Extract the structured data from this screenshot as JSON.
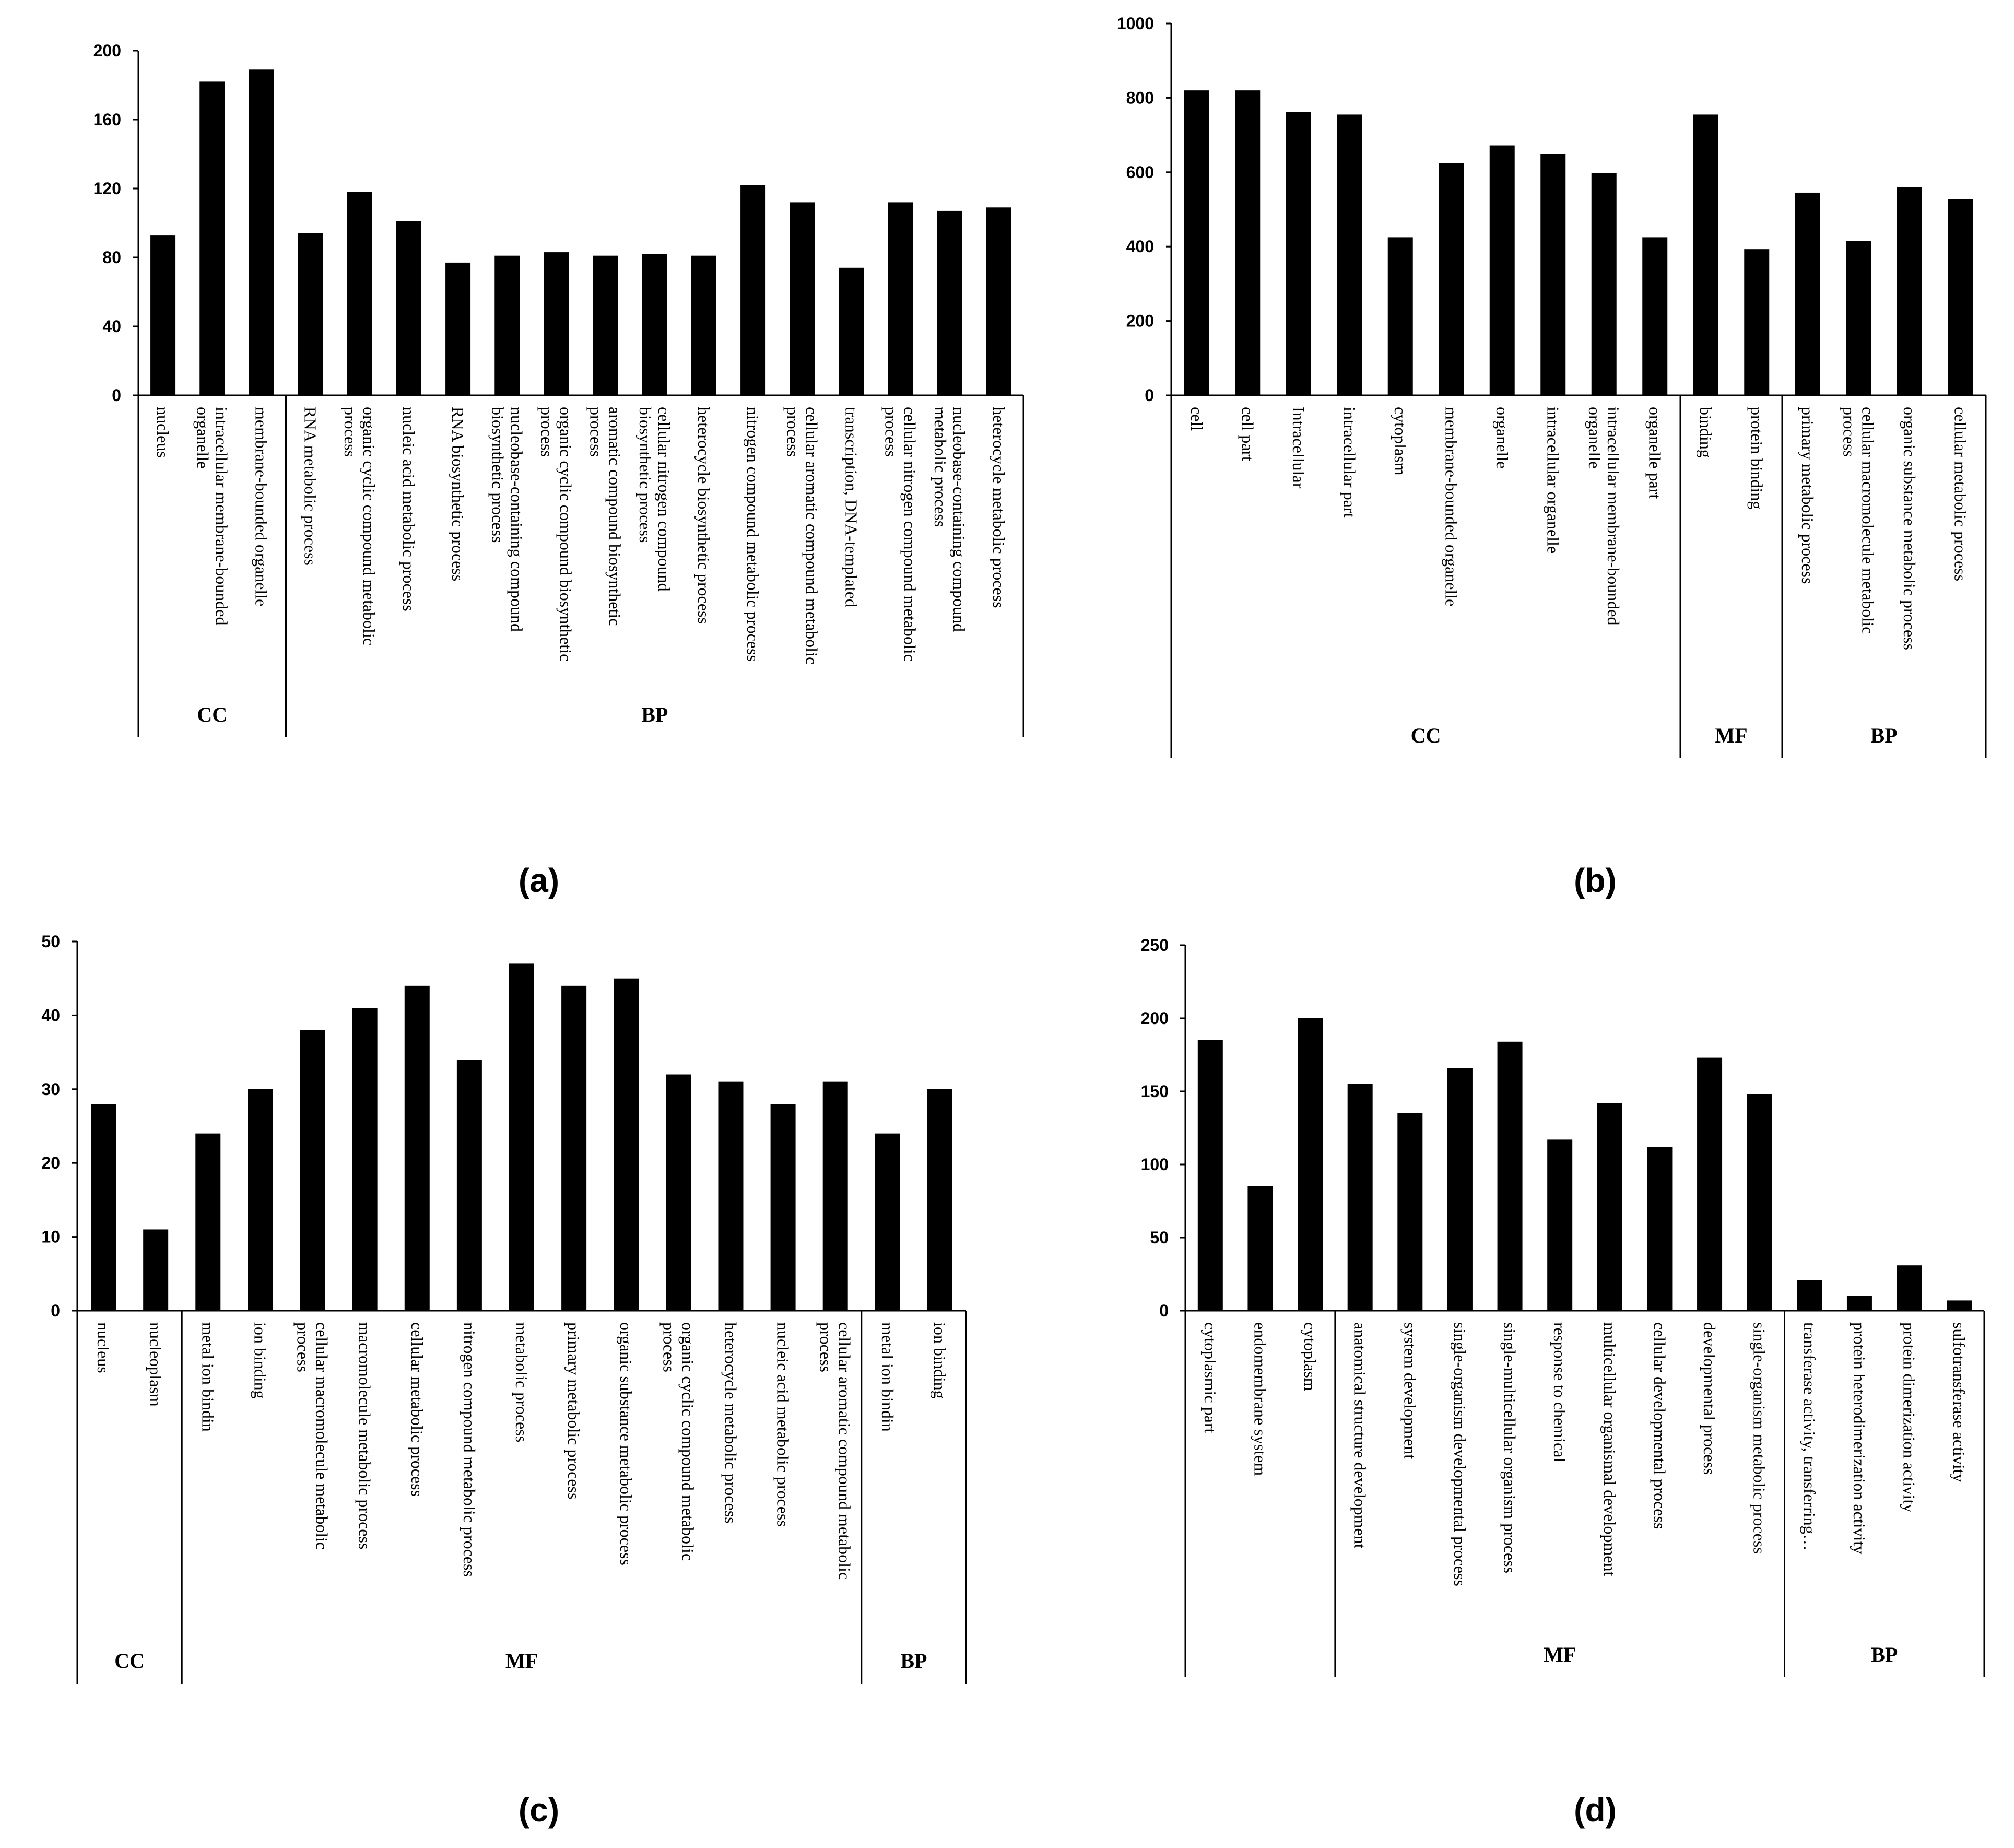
{
  "chart_data": [
    {
      "type": "bar",
      "panel": "(a)",
      "categories": [
        "nucleus",
        "intracellular membrane-bounded organelle",
        "membrane-bounded organelle",
        "RNA metabolic process",
        "organic cyclic compound metabolic process",
        "nucleic acid metabolic process",
        "RNA biosynthetic process",
        "nucleobase-containing compound biosynthetic process",
        "organic cyclic compound biosynthetic process",
        "aromatic compound biosynthetic process",
        "cellular nitrogen compound biosynthetic process",
        "heterocycle biosynthetic process",
        "nitrogen compound metabolic process",
        "cellular aromatic compound metabolic process",
        "transcription, DNA-templated",
        "cellular nitrogen compound metabolic process",
        "nucleobase-containing compound metabolic process",
        "heterocycle metabolic process"
      ],
      "label_lines": [
        [
          "nucleus"
        ],
        [
          "intracellular membrane-bounded",
          "organelle"
        ],
        [
          "membrane-bounded organelle"
        ],
        [
          "RNA metabolic process"
        ],
        [
          "organic cyclic compound metabolic",
          "process"
        ],
        [
          "nucleic acid metabolic process"
        ],
        [
          "RNA biosynthetic process"
        ],
        [
          "nucleobase-containing compound",
          "biosynthetic process"
        ],
        [
          "organic cyclic compound biosynthetic",
          "process"
        ],
        [
          "aromatic compound biosynthetic",
          "process"
        ],
        [
          "cellular nitrogen compound",
          "biosynthetic process"
        ],
        [
          "heterocycle biosynthetic process"
        ],
        [
          "nitrogen compound metabolic process"
        ],
        [
          "cellular aromatic compound metabolic",
          "process"
        ],
        [
          "transcription, DNA-templated"
        ],
        [
          "cellular nitrogen compound metabolic",
          "process"
        ],
        [
          "nucleobase-containing compound",
          "metabolic process"
        ],
        [
          "heterocycle metabolic process"
        ]
      ],
      "values": [
        93,
        182,
        189,
        94,
        118,
        101,
        77,
        81,
        83,
        81,
        82,
        81,
        122,
        112,
        74,
        112,
        107,
        109
      ],
      "groups": [
        {
          "label": "CC",
          "count": 3
        },
        {
          "label": "BP",
          "count": 15
        }
      ],
      "ylim": [
        0,
        200
      ],
      "yticks": [
        0,
        40,
        80,
        120,
        160,
        200
      ],
      "title": "",
      "xlabel": "",
      "ylabel": "",
      "grid": false
    },
    {
      "type": "bar",
      "panel": "(b)",
      "categories": [
        "cell",
        "cell part",
        "Intracellular",
        "intracellular part",
        "cytoplasm",
        "membrane-bounded organelle",
        "organelle",
        "intracellular organelle",
        "intracellular membrane-bounded organelle",
        "organelle part",
        "binding",
        "protein binding",
        "primary metabolic process",
        "cellular macromolecule metabolic process",
        "organic substance metabolic process",
        "cellular metabolic process"
      ],
      "label_lines": [
        [
          "cell"
        ],
        [
          "cell part"
        ],
        [
          "Intracellular"
        ],
        [
          "intracellular part"
        ],
        [
          "cytoplasm"
        ],
        [
          "membrane-bounded organelle"
        ],
        [
          "organelle"
        ],
        [
          "intracellular organelle"
        ],
        [
          "intracellular membrane-bounded",
          "organelle"
        ],
        [
          "organelle part"
        ],
        [
          "binding"
        ],
        [
          "protein binding"
        ],
        [
          "primary metabolic process"
        ],
        [
          "cellular macromolecule metabolic",
          "process"
        ],
        [
          "organic substance metabolic process"
        ],
        [
          "cellular metabolic process"
        ]
      ],
      "values": [
        820,
        820,
        762,
        755,
        425,
        625,
        672,
        650,
        597,
        425,
        755,
        393,
        545,
        415,
        560,
        527
      ],
      "groups": [
        {
          "label": "CC",
          "count": 10
        },
        {
          "label": "MF",
          "count": 2
        },
        {
          "label": "BP",
          "count": 4
        }
      ],
      "ylim": [
        0,
        1000
      ],
      "yticks": [
        0,
        200,
        400,
        600,
        800,
        1000
      ],
      "title": "",
      "xlabel": "",
      "ylabel": "",
      "grid": false
    },
    {
      "type": "bar",
      "panel": "(c)",
      "categories": [
        "nucleus",
        "nucleoplasm",
        "metal ion bindin",
        "ion binding",
        "cellular macromolecule metabolic process",
        "macromolecule metabolic process",
        "cellular metabolic process",
        "nitrogen compound metabolic process",
        "metabolic process",
        "primary metabolic process",
        "organic substance metabolic process",
        "organic cyclic compound metabolic process",
        "heterocycle metabolic process",
        "nucleic acid metabolic process",
        "cellular aromatic compound metabolic process",
        "metal ion bindin",
        "ion binding"
      ],
      "label_lines": [
        [
          "nucleus"
        ],
        [
          "nucleoplasm"
        ],
        [
          "metal ion bindin"
        ],
        [
          "ion binding"
        ],
        [
          "cellular macromolecule metabolic",
          "process"
        ],
        [
          "macromolecule metabolic process"
        ],
        [
          "cellular metabolic process"
        ],
        [
          "nitrogen compound metabolic process"
        ],
        [
          "metabolic process"
        ],
        [
          "primary metabolic process"
        ],
        [
          "organic substance metabolic process"
        ],
        [
          "organic cyclic compound metabolic",
          "process"
        ],
        [
          "heterocycle metabolic process"
        ],
        [
          "nucleic acid metabolic process"
        ],
        [
          "cellular aromatic compound metabolic",
          "process"
        ],
        [
          "metal ion bindin"
        ],
        [
          "ion binding"
        ]
      ],
      "values": [
        28,
        11,
        24,
        30,
        38,
        41,
        44,
        34,
        47,
        44,
        45,
        32,
        31,
        28,
        31,
        24,
        30
      ],
      "groups": [
        {
          "label": "CC",
          "count": 2
        },
        {
          "label": "MF",
          "count": 13
        },
        {
          "label": "BP",
          "count": 2
        }
      ],
      "ylim": [
        0,
        50
      ],
      "yticks": [
        0,
        10,
        20,
        30,
        40,
        50
      ],
      "title": "",
      "xlabel": "",
      "ylabel": "",
      "grid": false
    },
    {
      "type": "bar",
      "panel": "(d)",
      "categories": [
        "cytoplasmic part",
        "endomembrane system",
        "cytoplasm",
        "anatomical structure development",
        "system development",
        "single-organism developmental process",
        "single-multicellular organism process",
        "response to chemical",
        "multicellular organismal development",
        "cellular developmental process",
        "developmental process",
        "single-organism metabolic process",
        "transferase activity, transferring…",
        "protein heterodimerization activity",
        "protein dimerization activity",
        "sulfotransferase activity"
      ],
      "label_lines": [
        [
          "cytoplasmic part"
        ],
        [
          "endomembrane system"
        ],
        [
          "cytoplasm"
        ],
        [
          "anatomical structure development"
        ],
        [
          "system development"
        ],
        [
          "single-organism developmental process"
        ],
        [
          "single-multicellular organism process"
        ],
        [
          "response to chemical"
        ],
        [
          "multicellular organismal development"
        ],
        [
          "cellular developmental process"
        ],
        [
          "developmental process"
        ],
        [
          "single-organism metabolic process"
        ],
        [
          "transferase activity, transferring…"
        ],
        [
          "protein heterodimerization activity"
        ],
        [
          "protein dimerization activity"
        ],
        [
          "sulfotransferase activity"
        ]
      ],
      "values": [
        185,
        85,
        200,
        155,
        135,
        166,
        184,
        117,
        142,
        112,
        173,
        148,
        21,
        10,
        31,
        7
      ],
      "groups": [
        {
          "label": "",
          "count": 3
        },
        {
          "label": "MF",
          "count": 9
        },
        {
          "label": "BP",
          "count": 4
        }
      ],
      "ylim": [
        0,
        250
      ],
      "yticks": [
        0,
        50,
        100,
        150,
        200,
        250
      ],
      "title": "",
      "xlabel": "",
      "ylabel": "",
      "grid": false
    }
  ],
  "colors": {
    "bar": "#000000",
    "axis": "#000000",
    "background": "#ffffff"
  }
}
